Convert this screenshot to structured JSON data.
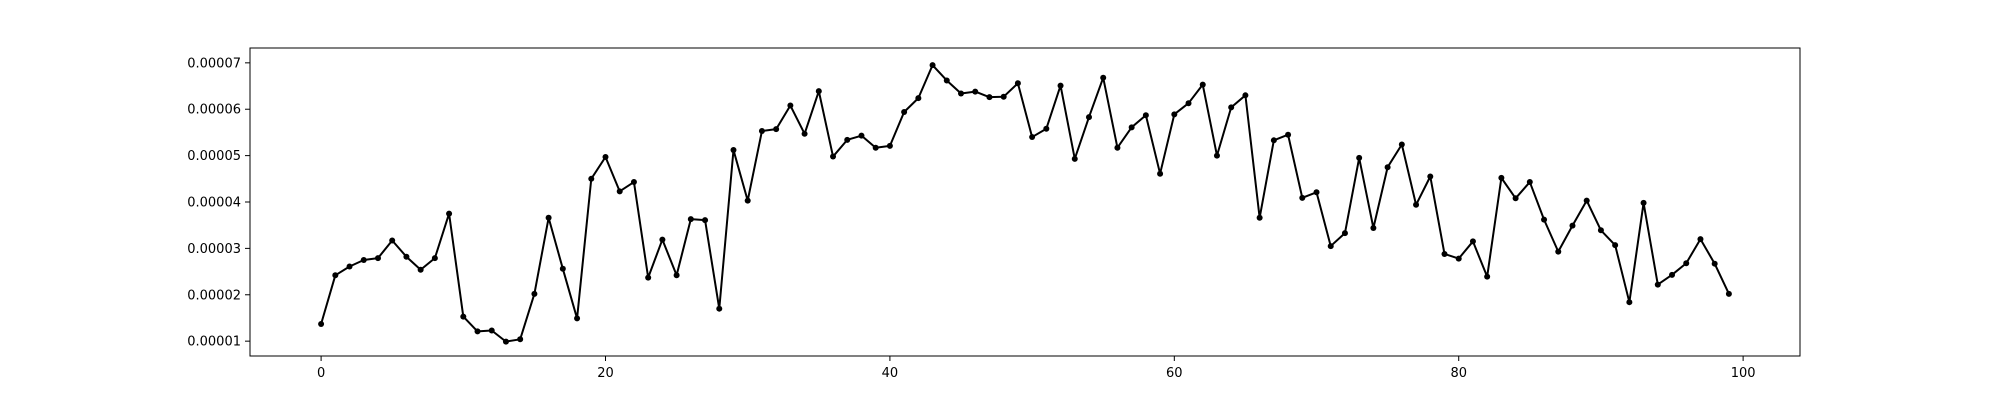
{
  "chart_data": {
    "type": "line",
    "title": "",
    "xlabel": "",
    "ylabel": "",
    "xlim": [
      -5,
      104
    ],
    "ylim": [
      6.8e-06,
      7.32e-05
    ],
    "xticks": [
      0,
      20,
      40,
      60,
      80,
      100
    ],
    "xtick_labels": [
      "0",
      "20",
      "40",
      "60",
      "80",
      "100"
    ],
    "yticks": [
      1e-05,
      2e-05,
      3e-05,
      4e-05,
      5e-05,
      6e-05,
      7e-05
    ],
    "ytick_labels": [
      "0.00001",
      "0.00002",
      "0.00003",
      "0.00004",
      "0.00005",
      "0.00006",
      "0.00007"
    ],
    "grid": false,
    "legend": "none",
    "series": [
      {
        "color": "#000000",
        "marker": "dot",
        "x": [
          0,
          1,
          2,
          3,
          4,
          5,
          6,
          7,
          8,
          9,
          10,
          11,
          12,
          13,
          14,
          15,
          16,
          17,
          18,
          19,
          20,
          21,
          22,
          23,
          24,
          25,
          26,
          27,
          28,
          29,
          30,
          31,
          32,
          33,
          34,
          35,
          36,
          37,
          38,
          39,
          40,
          41,
          42,
          43,
          44,
          45,
          46,
          47,
          48,
          49,
          50,
          51,
          52,
          53,
          54,
          55,
          56,
          57,
          58,
          59,
          60,
          61,
          62,
          63,
          64,
          65,
          66,
          67,
          68,
          69,
          70,
          71,
          72,
          73,
          74,
          75,
          76,
          77,
          78,
          79,
          80,
          81,
          82,
          83,
          84,
          85,
          86,
          87,
          88,
          89,
          90,
          91,
          92,
          93,
          94,
          95,
          96,
          97,
          98,
          99
        ],
        "values": [
          1.37e-05,
          2.42e-05,
          2.61e-05,
          2.75e-05,
          2.79e-05,
          3.17e-05,
          2.82e-05,
          2.54e-05,
          2.79e-05,
          3.75e-05,
          1.53e-05,
          1.21e-05,
          1.23e-05,
          9.9e-06,
          1.04e-05,
          2.02e-05,
          3.66e-05,
          2.56e-05,
          1.49e-05,
          4.5e-05,
          4.97e-05,
          4.23e-05,
          4.43e-05,
          2.37e-05,
          3.19e-05,
          2.42e-05,
          3.63e-05,
          3.61e-05,
          1.7e-05,
          5.12e-05,
          4.03e-05,
          5.53e-05,
          5.57e-05,
          6.08e-05,
          5.47e-05,
          6.39e-05,
          4.98e-05,
          5.34e-05,
          5.43e-05,
          5.17e-05,
          5.21e-05,
          5.94e-05,
          6.24e-05,
          6.95e-05,
          6.62e-05,
          6.34e-05,
          6.38e-05,
          6.26e-05,
          6.27e-05,
          6.56e-05,
          5.4e-05,
          5.58e-05,
          6.51e-05,
          4.93e-05,
          5.83e-05,
          6.68e-05,
          5.17e-05,
          5.61e-05,
          5.87e-05,
          4.61e-05,
          5.89e-05,
          6.13e-05,
          6.53e-05,
          5e-05,
          6.04e-05,
          6.3e-05,
          3.66e-05,
          5.33e-05,
          5.45e-05,
          4.09e-05,
          4.21e-05,
          3.05e-05,
          3.33e-05,
          4.95e-05,
          3.44e-05,
          4.75e-05,
          5.24e-05,
          3.94e-05,
          4.55e-05,
          2.88e-05,
          2.78e-05,
          3.15e-05,
          2.39e-05,
          4.52e-05,
          4.08e-05,
          4.43e-05,
          3.62e-05,
          2.93e-05,
          3.49e-05,
          4.03e-05,
          3.39e-05,
          3.07e-05,
          1.84e-05,
          3.98e-05,
          2.22e-05,
          2.43e-05,
          2.68e-05,
          3.2e-05,
          2.67e-05,
          2.02e-05
        ]
      }
    ]
  }
}
